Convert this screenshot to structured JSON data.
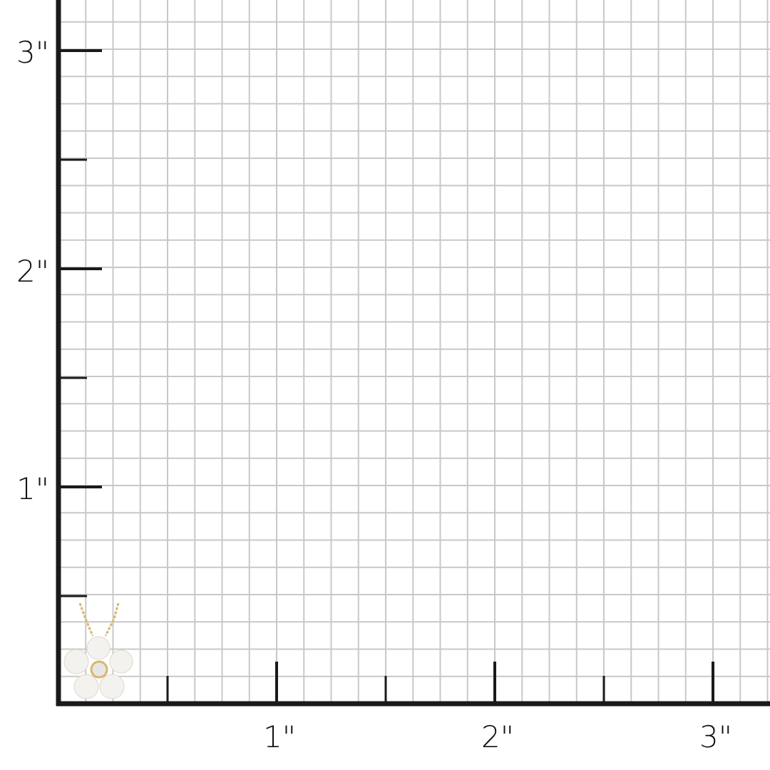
{
  "ruler": {
    "unit_label": "inch",
    "x_labels": [
      "1\"",
      "2\"",
      "3\""
    ],
    "y_labels": [
      "1\"",
      "2\"",
      "3\""
    ],
    "subdivisions_per_inch": 8,
    "grid_color": "#c8c8c8",
    "axis_color": "#1a1a1a"
  },
  "product": {
    "type": "pearl flower pendant necklace",
    "metal_color": "#d9b866",
    "pearl_color": "#f4f2ee"
  }
}
